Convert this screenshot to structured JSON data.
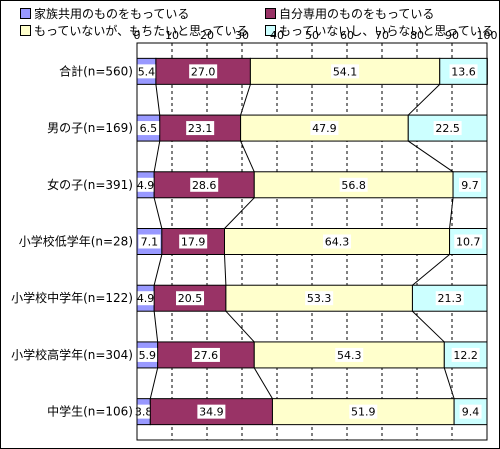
{
  "chart_data": {
    "type": "bar",
    "orientation": "horizontal",
    "stacked": true,
    "percent_stacked": true,
    "xlim": [
      0,
      100
    ],
    "x_ticks": [
      "0",
      "10",
      "20",
      "30",
      "40",
      "50",
      "60",
      "70",
      "80",
      "90",
      "100"
    ],
    "grid": "vertical dashed",
    "legend_placement": "top",
    "categories": [
      "合計(n=560)",
      "男の子(n=169)",
      "女の子(n=391)",
      "小学校低学年(n=28)",
      "小学校中学年(n=122)",
      "小学校高学年(n=304)",
      "中学生(n=106)"
    ],
    "series": [
      {
        "name": "家族共用のものをもっている",
        "color": "#9999ff",
        "values": [
          5.4,
          6.5,
          4.9,
          7.1,
          4.9,
          5.9,
          3.8
        ]
      },
      {
        "name": "自分専用のものをもっている",
        "color": "#993366",
        "values": [
          27.0,
          23.1,
          28.6,
          17.9,
          20.5,
          27.6,
          34.9
        ]
      },
      {
        "name": "もっていないが、もちたいと思っている",
        "color": "#ffffcc",
        "values": [
          54.1,
          47.9,
          56.8,
          64.3,
          53.3,
          54.3,
          51.9
        ]
      },
      {
        "name": "もっていないし、いらないと思っている",
        "color": "#ccffff",
        "values": [
          13.6,
          22.5,
          9.7,
          10.7,
          21.3,
          12.2,
          9.4
        ]
      }
    ],
    "data_labels": [
      [
        "5.4",
        "27.0",
        "54.1",
        "13.6"
      ],
      [
        "6.5",
        "23.1",
        "47.9",
        "22.5"
      ],
      [
        "4.9",
        "28.6",
        "56.8",
        "9.7"
      ],
      [
        "7.1",
        "17.9",
        "64.3",
        "10.7"
      ],
      [
        "4.9",
        "20.5",
        "53.3",
        "21.3"
      ],
      [
        "5.9",
        "27.6",
        "54.3",
        "12.2"
      ],
      [
        "3.8",
        "34.9",
        "51.9",
        "9.4"
      ]
    ]
  }
}
